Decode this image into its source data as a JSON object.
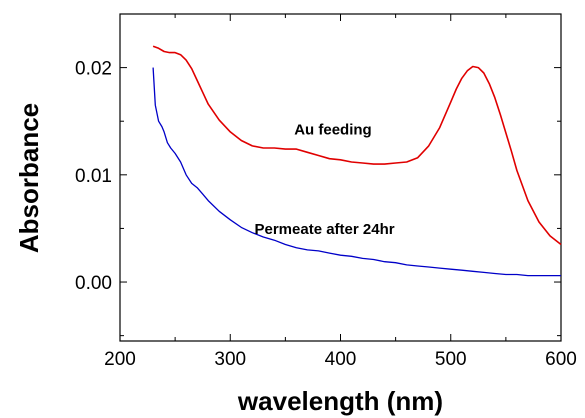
{
  "chart_data": {
    "type": "line",
    "title": "",
    "xlabel": "wavelength (nm)",
    "ylabel": "Absorbance",
    "xlim": [
      200,
      600
    ],
    "ylim": [
      -0.0055,
      0.025
    ],
    "xticks": [
      200,
      300,
      400,
      500,
      600
    ],
    "xtick_labels": [
      "200",
      "300",
      "400",
      "500",
      "600"
    ],
    "yticks": [
      0.0,
      0.01,
      0.02
    ],
    "ytick_labels": [
      "0.00",
      "0.01",
      "0.02"
    ],
    "grid": false,
    "legend": "none",
    "series": [
      {
        "color": "#e00000",
        "x": [
          230,
          235,
          240,
          245,
          250,
          255,
          260,
          265,
          270,
          275,
          280,
          290,
          300,
          310,
          320,
          330,
          340,
          350,
          360,
          370,
          380,
          390,
          400,
          410,
          420,
          430,
          440,
          450,
          460,
          470,
          480,
          490,
          500,
          505,
          510,
          515,
          520,
          525,
          530,
          535,
          540,
          545,
          550,
          555,
          560,
          570,
          580,
          590,
          600
        ],
        "y": [
          0.022,
          0.0218,
          0.0215,
          0.0214,
          0.0214,
          0.0212,
          0.0207,
          0.0199,
          0.0188,
          0.0177,
          0.0166,
          0.0151,
          0.014,
          0.0132,
          0.0127,
          0.0125,
          0.0125,
          0.0124,
          0.0124,
          0.0121,
          0.0118,
          0.0115,
          0.0114,
          0.0112,
          0.0111,
          0.011,
          0.011,
          0.0111,
          0.0112,
          0.0116,
          0.0127,
          0.0144,
          0.0168,
          0.018,
          0.019,
          0.0197,
          0.0201,
          0.02,
          0.0195,
          0.0185,
          0.0172,
          0.0156,
          0.0139,
          0.0122,
          0.0104,
          0.0076,
          0.0056,
          0.0043,
          0.0035
        ]
      },
      {
        "color": "#0000c8",
        "x": [
          230,
          232,
          235,
          238,
          240,
          243,
          246,
          250,
          255,
          260,
          265,
          270,
          275,
          280,
          290,
          300,
          310,
          320,
          330,
          340,
          350,
          360,
          370,
          380,
          390,
          400,
          410,
          420,
          430,
          440,
          450,
          460,
          470,
          480,
          490,
          500,
          510,
          520,
          530,
          540,
          550,
          560,
          570,
          580,
          590,
          600
        ],
        "y": [
          0.02,
          0.0165,
          0.015,
          0.0145,
          0.014,
          0.013,
          0.0125,
          0.012,
          0.0112,
          0.01,
          0.0092,
          0.0088,
          0.0082,
          0.0076,
          0.0066,
          0.0058,
          0.0051,
          0.0046,
          0.0042,
          0.0039,
          0.0035,
          0.0032,
          0.003,
          0.0029,
          0.0027,
          0.0025,
          0.0024,
          0.0022,
          0.0021,
          0.0019,
          0.0018,
          0.0016,
          0.0015,
          0.0014,
          0.0013,
          0.0012,
          0.0011,
          0.001,
          0.0009,
          0.0008,
          0.0007,
          0.0007,
          0.0006,
          0.0006,
          0.0006,
          0.0006
        ]
      }
    ],
    "annotations": [
      {
        "text": "Au feeding",
        "x": 358,
        "y": 0.01375
      },
      {
        "text": "Permeate  after 24hr",
        "x": 322,
        "y": 0.0045
      }
    ]
  }
}
